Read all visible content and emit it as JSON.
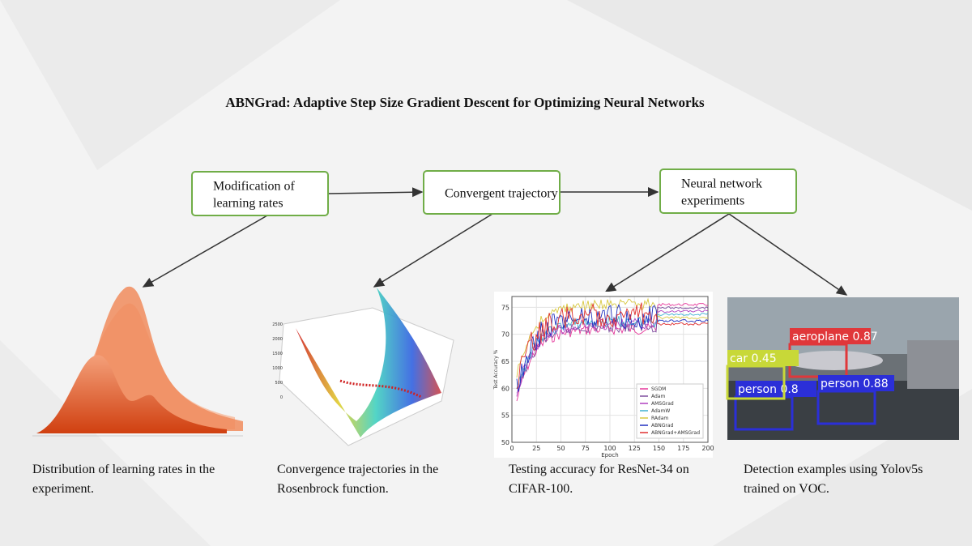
{
  "title": "ABNGrad: Adaptive Step Size Gradient Descent for Optimizing Neural Networks",
  "nodes": [
    {
      "lines": [
        "Modification of",
        "learning rates"
      ]
    },
    {
      "lines": [
        "Convergent trajectory"
      ]
    },
    {
      "lines": [
        "Neural network",
        "experiments"
      ]
    }
  ],
  "captions": [
    {
      "lines": [
        "Distribution of learning rates in the",
        "experiment."
      ]
    },
    {
      "lines": [
        "Convergence trajectories in the",
        "Rosenbrock function."
      ]
    },
    {
      "lines": [
        "Testing accuracy for ResNet-34 on",
        "CIFAR-100."
      ]
    },
    {
      "lines": [
        "Detection examples using Yolov5s",
        "trained on VOC."
      ]
    }
  ],
  "surface": {
    "zticks": [
      0,
      500,
      1000,
      1500,
      2000,
      2500
    ]
  },
  "accuracy": {
    "xlabel": "Epoch",
    "ylabel": "Test Accuracy %",
    "xlim": [
      0,
      200
    ],
    "ylim": [
      50,
      77
    ],
    "xticks": [
      0,
      25,
      50,
      75,
      100,
      125,
      150,
      175,
      200
    ],
    "yticks": [
      50,
      55,
      60,
      65,
      70,
      75
    ],
    "legend": [
      {
        "name": "SGDM",
        "color": "#e6399b"
      },
      {
        "name": "Adam",
        "color": "#7f4f9f"
      },
      {
        "name": "AMSGrad",
        "color": "#b040c0"
      },
      {
        "name": "AdamW",
        "color": "#40b0d0"
      },
      {
        "name": "RAdam",
        "color": "#d8c840"
      },
      {
        "name": "ABNGrad",
        "color": "#2030c0"
      },
      {
        "name": "ABNGrad+AMSGrad",
        "color": "#e03030"
      }
    ]
  },
  "detection": {
    "labels": [
      "aeroplane 0.87",
      "person 0.88",
      "person 0.8",
      "car 0.45"
    ]
  }
}
